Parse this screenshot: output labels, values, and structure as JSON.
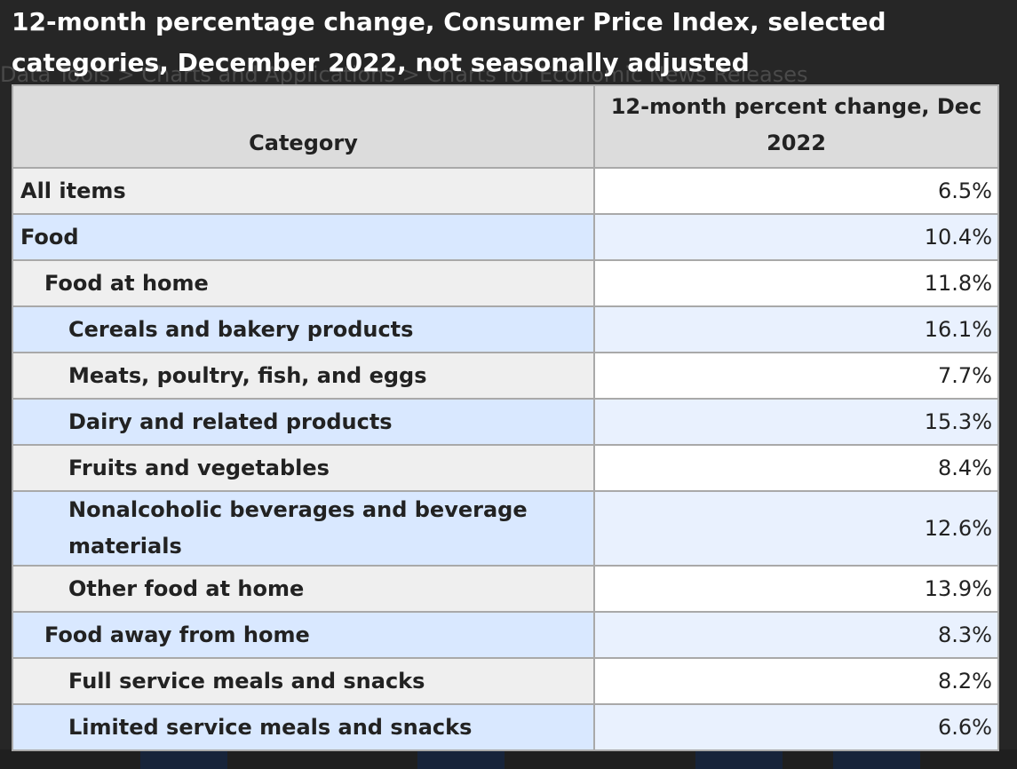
{
  "background": {
    "breadcrumb": "Data Tools > Charts and Applications > Charts for Economic News Releases"
  },
  "modal": {
    "title": "12-month percentage change, Consumer Price Index, selected categories, December 2022, not seasonally adjusted",
    "table": {
      "headers": [
        "Category",
        "12-month percent change, Dec 2022"
      ],
      "rows": [
        {
          "category": "All items",
          "value": "6.5%"
        },
        {
          "category": "Food",
          "value": "10.4%"
        },
        {
          "category": "Food at home",
          "value": "11.8%"
        },
        {
          "category": "Cereals and bakery products",
          "value": "16.1%"
        },
        {
          "category": "Meats, poultry, fish, and eggs",
          "value": "7.7%"
        },
        {
          "category": "Dairy and related products",
          "value": "15.3%"
        },
        {
          "category": "Fruits and vegetables",
          "value": "8.4%"
        },
        {
          "category": "Nonalcoholic beverages and beverage materials",
          "value": "12.6%"
        },
        {
          "category": "Other food at home",
          "value": "13.9%"
        },
        {
          "category": "Food away from home",
          "value": "8.3%"
        },
        {
          "category": "Full service meals and snacks",
          "value": "8.2%"
        },
        {
          "category": "Limited service meals and snacks",
          "value": "6.6%"
        }
      ]
    }
  },
  "colors": {
    "overlay": "#262626",
    "header_bg": "#dcdcdc",
    "row_alt_bg": "#d9e8ff",
    "row_bg": "#efefef",
    "grid": "#a9a9a9"
  }
}
